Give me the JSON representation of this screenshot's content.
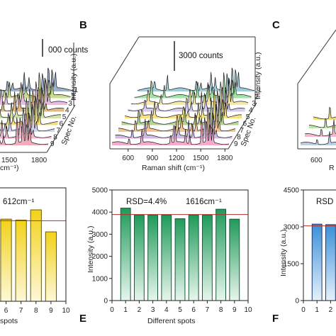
{
  "panels": [
    {
      "id": "A",
      "label": "",
      "xlabel_frag": "cm⁻¹)",
      "x_ticks": [
        "1500",
        "1800"
      ],
      "scale_note_frag": "000 counts",
      "spectrum_axis": "Spec No.",
      "intensity_label": "Intensity (a.u.)",
      "spec_numbers": [
        "1",
        "2",
        "3",
        "4",
        "5",
        "6",
        "7",
        "8",
        "9"
      ]
    },
    {
      "id": "B",
      "label": "B",
      "xlabel": "Raman shift (cm⁻¹)",
      "x_ticks": [
        "600",
        "900",
        "1200",
        "1500",
        "1800"
      ],
      "scale_note": "3000 counts",
      "spectrum_axis": "Spec No.",
      "intensity_label": "Intensity (a.u.)",
      "spec_numbers": [
        "1",
        "2",
        "3",
        "4",
        "5",
        "6",
        "7",
        "8",
        "9"
      ]
    },
    {
      "id": "C",
      "label": "C",
      "x_ticks": [
        "600"
      ],
      "xlabel_frag": "R"
    },
    {
      "id": "D",
      "label": "",
      "peak_note": "612cm⁻¹",
      "xlabel_frag": "spots",
      "x_ticks": [
        "6",
        "7",
        "8",
        "9",
        "10"
      ]
    },
    {
      "id": "E",
      "label": "E",
      "rsd_note": "RSD=4.4%",
      "peak_note": "1616cm⁻¹",
      "xlabel": "Different spots",
      "ylabel": "Intensity (a.u.)"
    },
    {
      "id": "F",
      "label": "F",
      "rsd_note_frag": "RSD",
      "ylabel": "Intensity (a.u.)",
      "x_ticks": [
        "0",
        "1",
        "2"
      ]
    }
  ],
  "chart_data": [
    {
      "panel": "A",
      "type": "line",
      "title": "",
      "xlabel": "",
      "ylabel": "Intensity (a.u.)",
      "x_visible_ticks": [
        1500,
        1800
      ],
      "series_count": 9,
      "series_colors": [
        "#9aaec8",
        "#c8dc88",
        "#e6b8dc",
        "#ddb67e",
        "#cfe0a5",
        "#ecdc78",
        "#d0d0f0",
        "#f0b4cc",
        "#f0a8b8"
      ]
    },
    {
      "panel": "B",
      "type": "line",
      "title": "",
      "xlabel": "Raman shift (cm⁻¹)",
      "ylabel": "Intensity (a.u.)",
      "xlim": [
        400,
        1850
      ],
      "x_ticks": [
        600,
        900,
        1200,
        1500,
        1800
      ],
      "series_names": [
        "1",
        "2",
        "3",
        "4",
        "5",
        "6",
        "7",
        "8",
        "9"
      ],
      "series_colors": [
        "#9ec9d8",
        "#9ee0a0",
        "#f6e7a0",
        "#d6c8ec",
        "#f7e07a",
        "#b3d18b",
        "#f3c28c",
        "#d0b4e4",
        "#f3a7c8"
      ],
      "peaks_cm": [
        612,
        770,
        1130,
        1184,
        1312,
        1364,
        1512,
        1575,
        1616,
        1650
      ]
    },
    {
      "panel": "C",
      "type": "line",
      "title": "",
      "x_visible_ticks": [
        600
      ],
      "series_colors": [
        "#ece072",
        "#bde0a4",
        "#f0b4cc",
        "#b8cce6"
      ]
    },
    {
      "panel": "D",
      "type": "bar",
      "title": "",
      "xlabel": "spots",
      "categories": [
        "6",
        "7",
        "8",
        "9"
      ],
      "values": [
        3620,
        3580,
        4030,
        3060
      ],
      "reference_line": 3550,
      "xlim": [
        5.5,
        10
      ],
      "ylim": [
        0,
        5000
      ]
    },
    {
      "panel": "E",
      "type": "bar",
      "title": "",
      "xlabel": "Different spots",
      "ylabel": "Intensity (a.u.)",
      "categories": [
        "1",
        "2",
        "3",
        "4",
        "5",
        "6",
        "7",
        "8",
        "9"
      ],
      "values": [
        4180,
        3860,
        3860,
        3860,
        3700,
        3860,
        3860,
        4130,
        3680
      ],
      "reference_line": 3890,
      "xlim": [
        0,
        10
      ],
      "ylim": [
        0,
        5000
      ],
      "x_ticks": [
        0,
        1,
        2,
        3,
        4,
        5,
        6,
        7,
        8,
        9,
        10
      ],
      "y_ticks": [
        0,
        1000,
        2000,
        3000,
        4000,
        5000
      ],
      "annotations": [
        "RSD=4.4%",
        "1616cm⁻¹"
      ],
      "bar_color": "#1f9a5a",
      "line_color": "#b03030"
    },
    {
      "panel": "F",
      "type": "bar",
      "title": "",
      "ylabel": "Intensity (a.u.)",
      "categories": [
        "1",
        "2",
        "3"
      ],
      "values": [
        3110,
        3090,
        3090
      ],
      "reference_line": 3040,
      "xlim": [
        0,
        10
      ],
      "ylim": [
        0,
        4500
      ],
      "y_ticks": [
        0,
        1500,
        3000,
        4500
      ],
      "bar_color": "#3a8fd8",
      "line_color": "#b03030"
    }
  ]
}
